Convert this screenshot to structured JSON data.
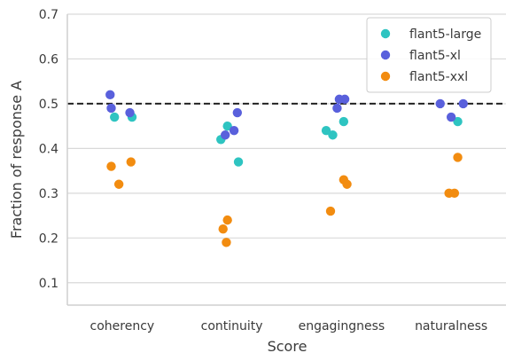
{
  "chart_data": {
    "type": "scatter",
    "xlabel": "Score",
    "ylabel": "Fraction of response A",
    "categories": [
      "coherency",
      "continuity",
      "engagingness",
      "naturalness"
    ],
    "ylim": [
      0.05,
      0.7
    ],
    "yticks": [
      "0.1",
      "0.2",
      "0.3",
      "0.4",
      "0.5",
      "0.6",
      "0.7"
    ],
    "grid": "horizontal",
    "reference_line": 0.5,
    "legend_position": "top-right",
    "series": [
      {
        "name": "flant5-large",
        "color": "#2ec4c1",
        "points": [
          {
            "category": "coherency",
            "value": 0.47,
            "jitter": -0.07
          },
          {
            "category": "coherency",
            "value": 0.47,
            "jitter": 0.09
          },
          {
            "category": "continuity",
            "value": 0.42,
            "jitter": -0.1
          },
          {
            "category": "continuity",
            "value": 0.45,
            "jitter": -0.04
          },
          {
            "category": "continuity",
            "value": 0.37,
            "jitter": 0.06
          },
          {
            "category": "engagingness",
            "value": 0.44,
            "jitter": -0.14
          },
          {
            "category": "engagingness",
            "value": 0.43,
            "jitter": -0.08
          },
          {
            "category": "engagingness",
            "value": 0.46,
            "jitter": 0.02
          },
          {
            "category": "naturalness",
            "value": 0.46,
            "jitter": 0.06
          }
        ]
      },
      {
        "name": "flant5-xl",
        "color": "#5960dc",
        "points": [
          {
            "category": "coherency",
            "value": 0.52,
            "jitter": -0.11
          },
          {
            "category": "coherency",
            "value": 0.49,
            "jitter": -0.1
          },
          {
            "category": "coherency",
            "value": 0.48,
            "jitter": 0.07
          },
          {
            "category": "continuity",
            "value": 0.43,
            "jitter": -0.06
          },
          {
            "category": "continuity",
            "value": 0.44,
            "jitter": 0.02
          },
          {
            "category": "continuity",
            "value": 0.48,
            "jitter": 0.05
          },
          {
            "category": "engagingness",
            "value": 0.49,
            "jitter": -0.04
          },
          {
            "category": "engagingness",
            "value": 0.51,
            "jitter": -0.02
          },
          {
            "category": "engagingness",
            "value": 0.51,
            "jitter": 0.03
          },
          {
            "category": "naturalness",
            "value": 0.5,
            "jitter": -0.1
          },
          {
            "category": "naturalness",
            "value": 0.47,
            "jitter": 0.0
          },
          {
            "category": "naturalness",
            "value": 0.5,
            "jitter": 0.11
          }
        ]
      },
      {
        "name": "flant5-xxl",
        "color": "#f28c10",
        "points": [
          {
            "category": "coherency",
            "value": 0.36,
            "jitter": -0.1
          },
          {
            "category": "coherency",
            "value": 0.32,
            "jitter": -0.03
          },
          {
            "category": "coherency",
            "value": 0.37,
            "jitter": 0.08
          },
          {
            "category": "continuity",
            "value": 0.22,
            "jitter": -0.08
          },
          {
            "category": "continuity",
            "value": 0.24,
            "jitter": -0.04
          },
          {
            "category": "continuity",
            "value": 0.19,
            "jitter": -0.05
          },
          {
            "category": "engagingness",
            "value": 0.26,
            "jitter": -0.1
          },
          {
            "category": "engagingness",
            "value": 0.33,
            "jitter": 0.02
          },
          {
            "category": "engagingness",
            "value": 0.32,
            "jitter": 0.05
          },
          {
            "category": "naturalness",
            "value": 0.3,
            "jitter": -0.02
          },
          {
            "category": "naturalness",
            "value": 0.3,
            "jitter": 0.03
          },
          {
            "category": "naturalness",
            "value": 0.38,
            "jitter": 0.06
          }
        ]
      }
    ]
  }
}
